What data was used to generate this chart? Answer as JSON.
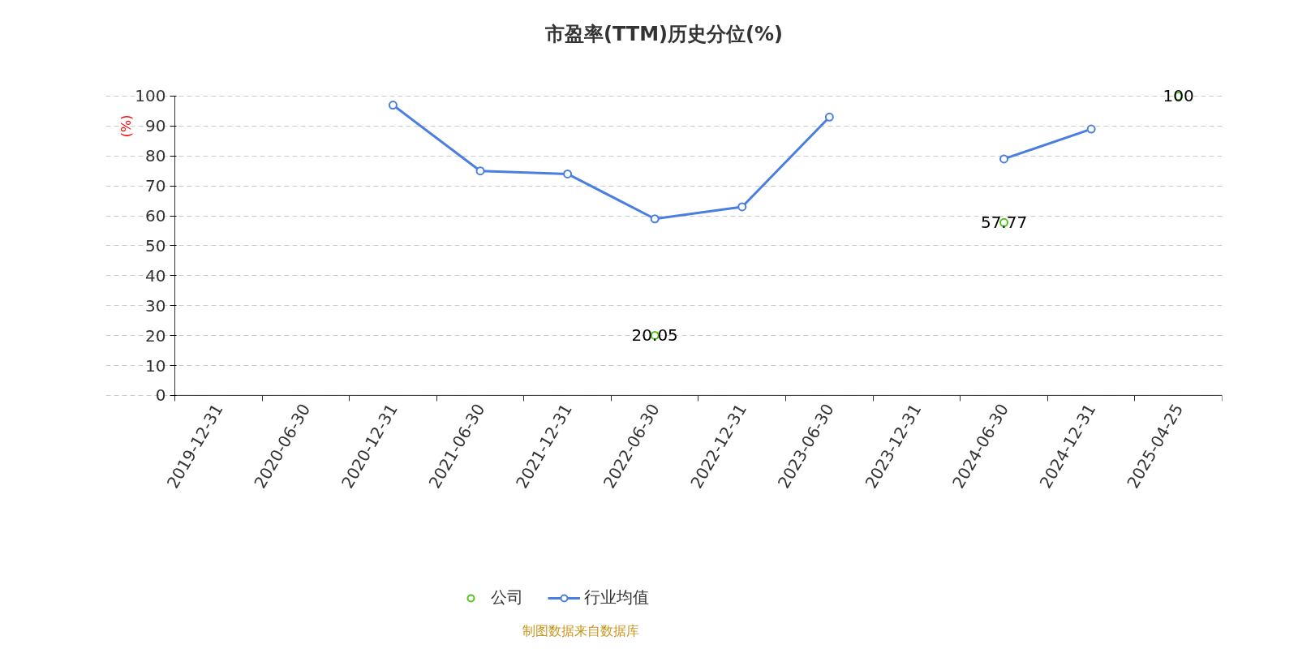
{
  "chart_data": {
    "type": "line",
    "title": "市盈率(TTM)历史分位(%)",
    "ylabel": "(%)",
    "categories": [
      "2019-12-31",
      "2020-06-30",
      "2020-12-31",
      "2021-06-30",
      "2021-12-31",
      "2022-06-30",
      "2022-12-31",
      "2023-06-30",
      "2023-12-31",
      "2024-06-30",
      "2024-12-31",
      "2025-04-25"
    ],
    "series": [
      {
        "name": "公司",
        "type": "scatter",
        "color": "#52c41a",
        "values": [
          null,
          null,
          null,
          null,
          null,
          20.05,
          null,
          null,
          null,
          57.77,
          null,
          100
        ],
        "value_labels": [
          null,
          null,
          null,
          null,
          null,
          "20.05",
          null,
          null,
          null,
          "57.77",
          null,
          "100"
        ]
      },
      {
        "name": "行业均值",
        "color": "#4a7fe0",
        "values": [
          null,
          null,
          97,
          75,
          74,
          59,
          63,
          93,
          null,
          79,
          89,
          null
        ]
      }
    ],
    "ylim": [
      0,
      100
    ],
    "yticks": [
      0,
      10,
      20,
      30,
      40,
      50,
      60,
      70,
      80,
      90,
      100
    ],
    "grid": "y",
    "legend": "bottom",
    "marker": "circle",
    "line_style": "solid",
    "annotations": [
      "制图数据来自数据库"
    ]
  }
}
